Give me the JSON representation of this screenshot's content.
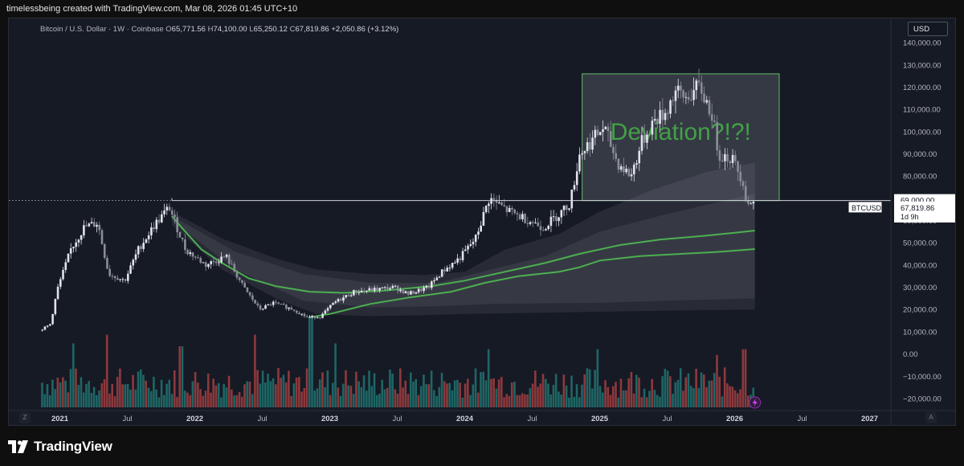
{
  "header": {
    "caption": "timelessbeing created with TradingView.com, Mar 08, 2026 01:45 UTC+10"
  },
  "legend": {
    "symbol": "Bitcoin / U.S. Dollar · 1W · Coinbase",
    "o_key": "O",
    "o_val": "65,771.56",
    "h_key": "H",
    "h_val": "74,100.00",
    "l_key": "L",
    "l_val": "65,250.12",
    "c_key": "C",
    "c_val": "67,819.86",
    "change": "+2,050.86 (+3.12%)"
  },
  "currency_button": "USD",
  "scale_buttons": {
    "left": "Z",
    "right": "A"
  },
  "footer": {
    "brand": "TradingView"
  },
  "chart_data": {
    "type": "candlestick",
    "timeframe": "1W",
    "y_axis": {
      "ticks": [
        140000,
        130000,
        120000,
        110000,
        100000,
        90000,
        80000,
        70000,
        60000,
        50000,
        40000,
        30000,
        20000,
        10000,
        0,
        -10000,
        -20000
      ],
      "tick_labels": [
        "140,000.00",
        "130,000.00",
        "120,000.00",
        "110,000.00",
        "100,000.00",
        "90,000.00",
        "80,000.00",
        "70,000.00",
        "60,000.00",
        "50,000.00",
        "40,000.00",
        "30,000.00",
        "20,000.00",
        "10,000.00",
        "0.00",
        "−10,000.00",
        "−20,000.00"
      ],
      "range": [
        -24000,
        148000
      ]
    },
    "x_axis": {
      "range": [
        2020.86,
        2027.11
      ],
      "ticks": [
        {
          "t": 2021.0,
          "label": "2021",
          "bold": true
        },
        {
          "t": 2021.5,
          "label": "Jul",
          "bold": false
        },
        {
          "t": 2022.0,
          "label": "2022",
          "bold": true
        },
        {
          "t": 2022.5,
          "label": "Jul",
          "bold": false
        },
        {
          "t": 2023.0,
          "label": "2023",
          "bold": true
        },
        {
          "t": 2023.5,
          "label": "Jul",
          "bold": false
        },
        {
          "t": 2024.0,
          "label": "2024",
          "bold": true
        },
        {
          "t": 2024.5,
          "label": "Jul",
          "bold": false
        },
        {
          "t": 2025.0,
          "label": "2025",
          "bold": true
        },
        {
          "t": 2025.5,
          "label": "Jul",
          "bold": false
        },
        {
          "t": 2026.0,
          "label": "2026",
          "bold": true
        },
        {
          "t": 2026.5,
          "label": "Jul",
          "bold": false
        },
        {
          "t": 2027.0,
          "label": "2027",
          "bold": true
        }
      ]
    },
    "price_path": [
      [
        2020.87,
        10500
      ],
      [
        2020.95,
        13500
      ],
      [
        2021.0,
        29000
      ],
      [
        2021.1,
        47000
      ],
      [
        2021.2,
        57000
      ],
      [
        2021.3,
        59000
      ],
      [
        2021.38,
        36000
      ],
      [
        2021.5,
        33000
      ],
      [
        2021.6,
        47000
      ],
      [
        2021.72,
        58000
      ],
      [
        2021.83,
        66000
      ],
      [
        2021.95,
        47000
      ],
      [
        2022.1,
        40000
      ],
      [
        2022.25,
        44000
      ],
      [
        2022.38,
        30000
      ],
      [
        2022.5,
        20000
      ],
      [
        2022.6,
        23000
      ],
      [
        2022.75,
        20000
      ],
      [
        2022.85,
        16500
      ],
      [
        2022.95,
        16800
      ],
      [
        2023.05,
        23000
      ],
      [
        2023.2,
        28000
      ],
      [
        2023.35,
        29000
      ],
      [
        2023.5,
        30000
      ],
      [
        2023.6,
        27000
      ],
      [
        2023.75,
        30000
      ],
      [
        2023.85,
        37000
      ],
      [
        2023.98,
        43000
      ],
      [
        2024.1,
        52000
      ],
      [
        2024.2,
        70000
      ],
      [
        2024.35,
        64000
      ],
      [
        2024.5,
        60000
      ],
      [
        2024.6,
        57000
      ],
      [
        2024.72,
        63000
      ],
      [
        2024.8,
        68000
      ],
      [
        2024.87,
        90000
      ],
      [
        2024.96,
        96000
      ],
      [
        2025.05,
        102000
      ],
      [
        2025.15,
        86000
      ],
      [
        2025.25,
        80000
      ],
      [
        2025.33,
        95000
      ],
      [
        2025.42,
        105000
      ],
      [
        2025.5,
        108000
      ],
      [
        2025.58,
        118000
      ],
      [
        2025.65,
        115000
      ],
      [
        2025.76,
        120000
      ],
      [
        2025.85,
        108000
      ],
      [
        2025.9,
        90000
      ],
      [
        2026.0,
        88000
      ],
      [
        2026.08,
        78000
      ],
      [
        2026.11,
        67800
      ],
      [
        2026.15,
        67820
      ]
    ],
    "moving_averages": [
      {
        "color": "#4caf50",
        "points": [
          [
            2021.83,
            62000
          ],
          [
            2021.9,
            57000
          ],
          [
            2022.05,
            47000
          ],
          [
            2022.2,
            41000
          ],
          [
            2022.4,
            34000
          ],
          [
            2022.6,
            30500
          ],
          [
            2022.85,
            28000
          ],
          [
            2023.1,
            27500
          ],
          [
            2023.4,
            28500
          ],
          [
            2023.75,
            30500
          ],
          [
            2024.0,
            33000
          ],
          [
            2024.3,
            37000
          ],
          [
            2024.6,
            41000
          ],
          [
            2024.85,
            45000
          ],
          [
            2025.15,
            49000
          ],
          [
            2025.45,
            51500
          ],
          [
            2025.75,
            53000
          ],
          [
            2026.0,
            54500
          ],
          [
            2026.15,
            55500
          ]
        ]
      },
      {
        "color": "#4caf50",
        "points": [
          [
            2022.85,
            16500
          ],
          [
            2023.0,
            18000
          ],
          [
            2023.3,
            22500
          ],
          [
            2023.6,
            25500
          ],
          [
            2023.9,
            28000
          ],
          [
            2024.15,
            32000
          ],
          [
            2024.4,
            35000
          ],
          [
            2024.7,
            37000
          ],
          [
            2024.85,
            39000
          ],
          [
            2025.0,
            42000
          ],
          [
            2025.3,
            44000
          ],
          [
            2025.6,
            45000
          ],
          [
            2025.9,
            46000
          ],
          [
            2026.15,
            47200
          ]
        ]
      }
    ],
    "bands": {
      "start": 2021.83,
      "end": 2026.15,
      "outer_upper": [
        [
          2021.83,
          64000
        ],
        [
          2022.2,
          52000
        ],
        [
          2022.6,
          43000
        ],
        [
          2022.9,
          38000
        ],
        [
          2023.3,
          36000
        ],
        [
          2023.7,
          35500
        ],
        [
          2024.0,
          37000
        ],
        [
          2024.3,
          47000
        ],
        [
          2024.7,
          54000
        ],
        [
          2025.0,
          64000
        ],
        [
          2025.4,
          74000
        ],
        [
          2025.8,
          82000
        ],
        [
          2026.15,
          86000
        ]
      ],
      "outer_lower": [
        [
          2021.83,
          58000
        ],
        [
          2022.2,
          38000
        ],
        [
          2022.6,
          25000
        ],
        [
          2022.9,
          18000
        ],
        [
          2023.3,
          17000
        ],
        [
          2023.7,
          17500
        ],
        [
          2024.0,
          18000
        ],
        [
          2024.5,
          18500
        ],
        [
          2025.0,
          19000
        ],
        [
          2025.5,
          19500
        ],
        [
          2026.15,
          20000
        ]
      ],
      "inner_upper": [
        [
          2021.83,
          62000
        ],
        [
          2022.3,
          46000
        ],
        [
          2022.8,
          36000
        ],
        [
          2023.3,
          32000
        ],
        [
          2023.8,
          32000
        ],
        [
          2024.2,
          38000
        ],
        [
          2024.6,
          44000
        ],
        [
          2025.0,
          55000
        ],
        [
          2025.5,
          63000
        ],
        [
          2026.15,
          72000
        ]
      ],
      "inner_lower": [
        [
          2021.83,
          60000
        ],
        [
          2022.3,
          38000
        ],
        [
          2022.8,
          24000
        ],
        [
          2023.3,
          21000
        ],
        [
          2023.8,
          21500
        ],
        [
          2024.2,
          22500
        ],
        [
          2024.6,
          22800
        ],
        [
          2025.0,
          23000
        ],
        [
          2025.5,
          24000
        ],
        [
          2026.15,
          25000
        ]
      ]
    },
    "horizontal_level": {
      "price": 69000,
      "label": "69,000.00",
      "start": 2021.83
    },
    "deviation_box": {
      "x0": 2024.87,
      "x1": 2026.33,
      "y0": 69000,
      "y1": 126000,
      "label": "Deviation?!?!"
    },
    "last_price": {
      "symbol": "BTCUSD",
      "price": 67819.86,
      "label": "67,819.86",
      "countdown": "1d 9h"
    },
    "volume": {
      "baseline": -24000,
      "spikes": [
        {
          "t": 2021.1,
          "v": 0.55,
          "up": false
        },
        {
          "t": 2021.35,
          "v": 0.7,
          "up": false
        },
        {
          "t": 2021.9,
          "v": 0.5,
          "up": false
        },
        {
          "t": 2022.45,
          "v": 0.7,
          "up": false
        },
        {
          "t": 2022.86,
          "v": 1.0,
          "up": false
        },
        {
          "t": 2023.05,
          "v": 0.55,
          "up": true
        },
        {
          "t": 2024.17,
          "v": 0.45,
          "up": true
        },
        {
          "t": 2024.98,
          "v": 0.45,
          "up": true
        },
        {
          "t": 2025.87,
          "v": 0.35,
          "up": false
        },
        {
          "t": 2026.07,
          "v": 0.45,
          "up": false
        }
      ]
    }
  }
}
